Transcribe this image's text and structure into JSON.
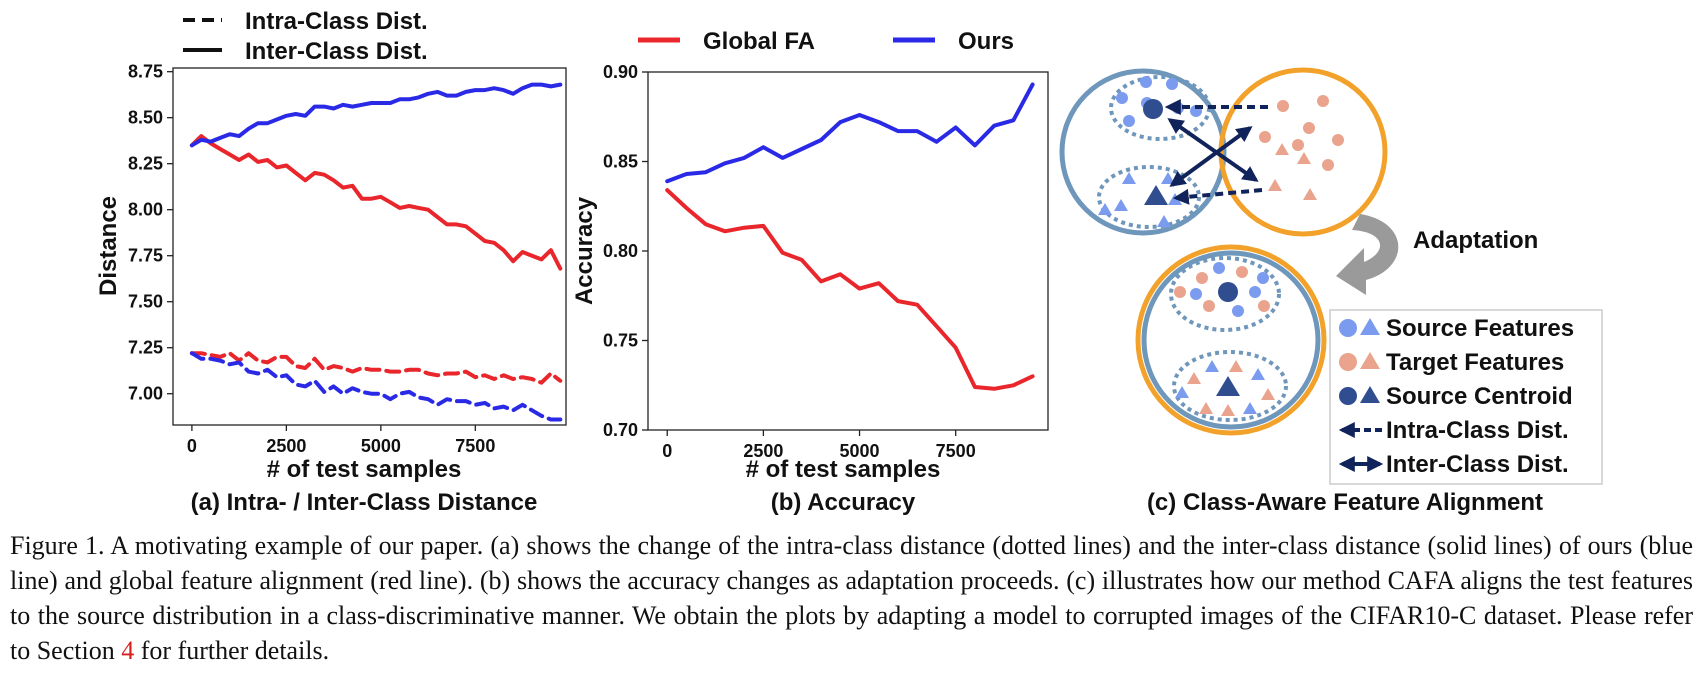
{
  "chart_data": [
    {
      "type": "line",
      "title": "(a) Intra- / Inter-Class Distance",
      "xlabel": "# of test samples",
      "ylabel": "Distance",
      "xlim": [
        -500,
        9900
      ],
      "ylim": [
        6.83,
        8.77
      ],
      "xticks": [
        0,
        2500,
        5000,
        7500
      ],
      "xtick_labels": [
        "0",
        "2500",
        "5000",
        "7500"
      ],
      "yticks": [
        7.0,
        7.25,
        7.5,
        7.75,
        8.0,
        8.25,
        8.5,
        8.75
      ],
      "ytick_labels": [
        "7.00",
        "7.25",
        "7.50",
        "7.75",
        "8.00",
        "8.25",
        "8.50",
        "8.75"
      ],
      "legend": [
        {
          "label": "Intra-Class Dist.",
          "style": "dashed"
        },
        {
          "label": "Inter-Class Dist.",
          "style": "solid"
        }
      ],
      "x": [
        0,
        250,
        500,
        750,
        1000,
        1250,
        1500,
        1750,
        2000,
        2250,
        2500,
        2750,
        3000,
        3250,
        3500,
        3750,
        4000,
        4250,
        4500,
        4750,
        5000,
        5250,
        5500,
        5750,
        6000,
        6250,
        6500,
        6750,
        7000,
        7250,
        7500,
        7750,
        8000,
        8250,
        8500,
        8750,
        9000,
        9250,
        9500,
        9750
      ],
      "series": [
        {
          "name": "Global FA inter",
          "color": "#e8262b",
          "style": "solid",
          "values": [
            8.35,
            8.4,
            8.36,
            8.33,
            8.3,
            8.27,
            8.3,
            8.26,
            8.27,
            8.23,
            8.24,
            8.2,
            8.16,
            8.2,
            8.19,
            8.16,
            8.12,
            8.13,
            8.06,
            8.06,
            8.07,
            8.04,
            8.01,
            8.02,
            8.01,
            8.0,
            7.96,
            7.92,
            7.92,
            7.91,
            7.87,
            7.83,
            7.82,
            7.78,
            7.72,
            7.77,
            7.75,
            7.73,
            7.78,
            7.68
          ]
        },
        {
          "name": "Ours inter",
          "color": "#2a2ae6",
          "style": "solid",
          "values": [
            8.35,
            8.38,
            8.37,
            8.39,
            8.41,
            8.4,
            8.44,
            8.47,
            8.47,
            8.49,
            8.51,
            8.52,
            8.51,
            8.56,
            8.56,
            8.55,
            8.57,
            8.56,
            8.57,
            8.58,
            8.58,
            8.58,
            8.6,
            8.6,
            8.61,
            8.63,
            8.64,
            8.62,
            8.62,
            8.64,
            8.65,
            8.65,
            8.66,
            8.65,
            8.63,
            8.66,
            8.68,
            8.68,
            8.67,
            8.68
          ]
        },
        {
          "name": "Global FA intra",
          "color": "#e8262b",
          "style": "dashed",
          "values": [
            7.22,
            7.22,
            7.21,
            7.2,
            7.22,
            7.18,
            7.22,
            7.18,
            7.17,
            7.2,
            7.2,
            7.15,
            7.14,
            7.19,
            7.13,
            7.15,
            7.14,
            7.12,
            7.14,
            7.13,
            7.13,
            7.12,
            7.12,
            7.13,
            7.13,
            7.11,
            7.1,
            7.11,
            7.11,
            7.12,
            7.09,
            7.1,
            7.08,
            7.1,
            7.08,
            7.09,
            7.08,
            7.06,
            7.11,
            7.07
          ]
        },
        {
          "name": "Ours intra",
          "color": "#2a2ae6",
          "style": "dashed",
          "values": [
            7.22,
            7.19,
            7.19,
            7.18,
            7.16,
            7.17,
            7.12,
            7.11,
            7.13,
            7.09,
            7.1,
            7.05,
            7.04,
            7.07,
            7.01,
            7.04,
            7.0,
            7.03,
            7.01,
            7.0,
            7.0,
            6.97,
            7.0,
            7.01,
            6.98,
            6.97,
            6.94,
            6.97,
            6.96,
            6.96,
            6.94,
            6.95,
            6.92,
            6.93,
            6.91,
            6.94,
            6.91,
            6.88,
            6.86,
            6.86
          ]
        }
      ]
    },
    {
      "type": "line",
      "title": "(b) Accuracy",
      "xlabel": "# of test samples",
      "ylabel": "Accuracy",
      "xlim": [
        -500,
        9900
      ],
      "ylim": [
        0.7,
        0.9
      ],
      "xticks": [
        0,
        2500,
        5000,
        7500
      ],
      "xtick_labels": [
        "0",
        "2500",
        "5000",
        "7500"
      ],
      "yticks": [
        0.7,
        0.75,
        0.8,
        0.85,
        0.9
      ],
      "ytick_labels": [
        "0.70",
        "0.75",
        "0.80",
        "0.85",
        "0.90"
      ],
      "legend": [
        {
          "label": "Global FA",
          "color": "#e8262b"
        },
        {
          "label": "Ours",
          "color": "#2a2ae6"
        }
      ],
      "x": [
        0,
        500,
        1000,
        1500,
        2000,
        2500,
        3000,
        3500,
        4000,
        4500,
        5000,
        5500,
        6000,
        6500,
        7000,
        7500,
        8000,
        8500,
        9000,
        9500
      ],
      "series": [
        {
          "name": "Global FA",
          "color": "#e8262b",
          "values": [
            0.834,
            0.824,
            0.815,
            0.811,
            0.813,
            0.814,
            0.799,
            0.795,
            0.783,
            0.787,
            0.779,
            0.782,
            0.772,
            0.77,
            0.758,
            0.746,
            0.724,
            0.723,
            0.725,
            0.73
          ]
        },
        {
          "name": "Ours",
          "color": "#2a2ae6",
          "values": [
            0.839,
            0.843,
            0.844,
            0.849,
            0.852,
            0.858,
            0.852,
            0.857,
            0.862,
            0.872,
            0.876,
            0.872,
            0.867,
            0.867,
            0.861,
            0.869,
            0.859,
            0.87,
            0.873,
            0.893
          ]
        }
      ]
    }
  ],
  "diagram": {
    "title": "(c) Class-Aware Feature Alignment",
    "adaptation_label": "Adaptation",
    "legend": [
      {
        "label": "Source Features"
      },
      {
        "label": "Target Features"
      },
      {
        "label": "Source Centroid"
      },
      {
        "label": "Intra-Class Dist."
      },
      {
        "label": "Inter-Class Dist."
      }
    ],
    "colors": {
      "source_ring": "#6f97bc",
      "target_ring": "#f2a22a",
      "source_feature": "#7b9bef",
      "target_feature": "#eaa38c",
      "centroid": "#2f4d8f",
      "arrow": "#10235a"
    }
  },
  "caption": {
    "before_ref": "Figure 1. A motivating example of our paper. (a) shows the change of the intra-class distance (dotted lines) and the inter-class distance (solid lines) of ours (blue line) and global feature alignment (red line). (b) shows the accuracy changes as adaptation proceeds. (c) illustrates how our method CAFA aligns the test features to the source distribution in a class-discriminative manner. We obtain the plots by adapting a model to corrupted images of the CIFAR10-C dataset. Please refer to Section ",
    "ref": "4",
    "after_ref": " for further details."
  }
}
